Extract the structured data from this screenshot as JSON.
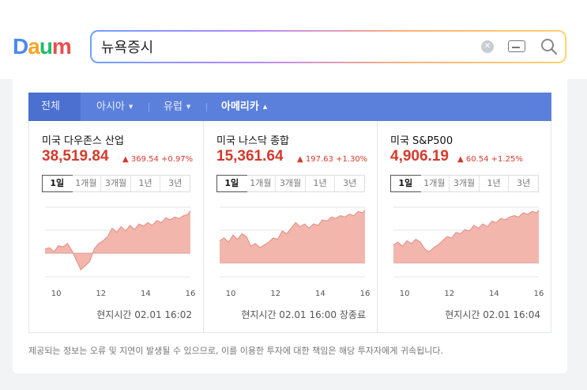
{
  "header": {
    "logo": [
      "D",
      "a",
      "u",
      "m"
    ],
    "logo_colors": [
      "#4b8af0",
      "#f5a623",
      "#1fbb6d",
      "#e84d4d"
    ],
    "search_value": "뉴욕증시",
    "icons": [
      "clear-icon",
      "keyboard-icon",
      "search-icon"
    ]
  },
  "tabs": [
    {
      "label": "전체",
      "caret": ""
    },
    {
      "label": "아시아",
      "caret": "▼"
    },
    {
      "label": "유럽",
      "caret": "▼"
    },
    {
      "label": "아메리카",
      "caret": "▲"
    }
  ],
  "periods": [
    "1일",
    "1개월",
    "3개월",
    "1년",
    "3년"
  ],
  "selected_period": "1일",
  "colors": {
    "up": "#d43a2c",
    "fill": "#f2b6ad",
    "tab_bar": "#5b80dc"
  },
  "indices": [
    {
      "name": "미국 다우존스 산업",
      "value": "38,519.84",
      "change": "▲ 369.54 +0.97%",
      "time": "현지시간 02.01 16:02",
      "chart_data": {
        "type": "area",
        "x_ticks": [
          "10",
          "12",
          "14",
          "16"
        ],
        "xlim": [
          9.5,
          16
        ],
        "ylim": [
          0,
          100
        ],
        "baseline": 34,
        "x": [
          9.5,
          9.7,
          9.9,
          10.1,
          10.3,
          10.5,
          10.7,
          10.9,
          11.1,
          11.3,
          11.5,
          11.7,
          11.9,
          12.1,
          12.3,
          12.5,
          12.7,
          12.9,
          13.1,
          13.3,
          13.5,
          13.7,
          13.9,
          14.1,
          14.3,
          14.5,
          14.7,
          14.9,
          15.1,
          15.3,
          15.5,
          15.7,
          15.9,
          16
        ],
        "y": [
          40,
          42,
          36,
          45,
          43,
          48,
          38,
          24,
          10,
          16,
          22,
          40,
          48,
          52,
          58,
          70,
          64,
          72,
          66,
          74,
          68,
          76,
          73,
          78,
          74,
          81,
          78,
          85,
          82,
          86,
          84,
          88,
          90,
          95
        ]
      }
    },
    {
      "name": "미국 나스닥 종합",
      "value": "15,361.64",
      "change": "▲ 197.63 +1.30%",
      "time": "현지시간 02.01 16:00 장종료",
      "chart_data": {
        "type": "area",
        "x_ticks": [
          "10",
          "12",
          "14",
          "16"
        ],
        "xlim": [
          9.5,
          16
        ],
        "ylim": [
          0,
          100
        ],
        "baseline": 20,
        "x": [
          9.5,
          9.7,
          9.9,
          10.1,
          10.3,
          10.5,
          10.7,
          10.9,
          11.1,
          11.3,
          11.5,
          11.7,
          11.9,
          12.1,
          12.3,
          12.5,
          12.7,
          12.9,
          13.1,
          13.3,
          13.5,
          13.7,
          13.9,
          14.1,
          14.3,
          14.5,
          14.7,
          14.9,
          15.1,
          15.3,
          15.5,
          15.7,
          15.9,
          16
        ],
        "y": [
          52,
          56,
          50,
          60,
          54,
          62,
          58,
          44,
          48,
          42,
          46,
          50,
          56,
          54,
          66,
          62,
          70,
          78,
          72,
          76,
          70,
          76,
          74,
          82,
          80,
          86,
          84,
          88,
          86,
          90,
          88,
          94,
          92,
          96
        ]
      }
    },
    {
      "name": "미국 S&P500",
      "value": "4,906.19",
      "change": "▲ 60.54 +1.25%",
      "time": "현지시간 02.01 16:04",
      "chart_data": {
        "type": "area",
        "x_ticks": [
          "10",
          "12",
          "14",
          "16"
        ],
        "xlim": [
          9.5,
          16
        ],
        "ylim": [
          0,
          100
        ],
        "baseline": 20,
        "x": [
          9.5,
          9.7,
          9.9,
          10.1,
          10.3,
          10.5,
          10.7,
          10.9,
          11.1,
          11.3,
          11.5,
          11.7,
          11.9,
          12.1,
          12.3,
          12.5,
          12.7,
          12.9,
          13.1,
          13.3,
          13.5,
          13.7,
          13.9,
          14.1,
          14.3,
          14.5,
          14.7,
          14.9,
          15.1,
          15.3,
          15.5,
          15.7,
          15.9,
          16
        ],
        "y": [
          46,
          50,
          44,
          52,
          48,
          54,
          50,
          40,
          36,
          42,
          46,
          52,
          58,
          56,
          64,
          62,
          68,
          66,
          74,
          70,
          76,
          72,
          80,
          78,
          84,
          82,
          86,
          88,
          86,
          92,
          90,
          94,
          92,
          96
        ]
      }
    }
  ],
  "notice": "제공되는 정보는 오류 및 지연이 발생될 수 있으므로, 이를 이용한 투자에 대한 책임은 해당 투자자에게 귀속됩니다."
}
